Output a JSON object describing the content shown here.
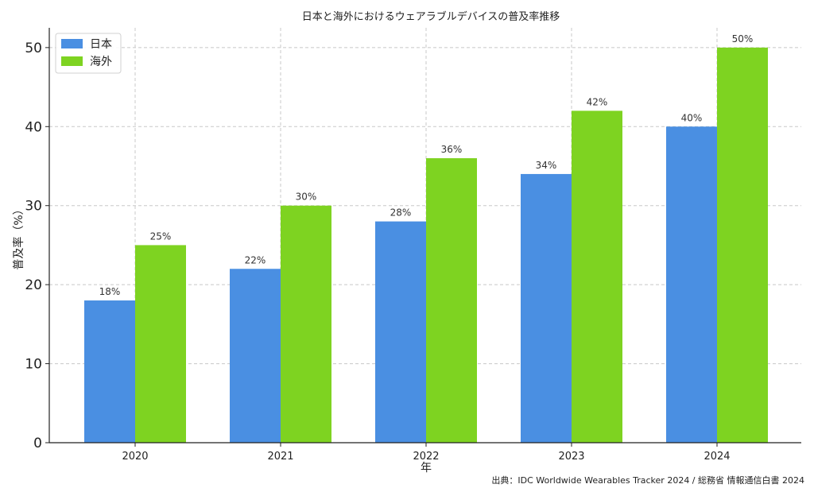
{
  "chart_data": {
    "type": "bar",
    "title": "日本と海外におけるウェアラブルデバイスの普及率推移",
    "xlabel": "年",
    "ylabel": "普及率（%）",
    "categories": [
      "2020",
      "2021",
      "2022",
      "2023",
      "2024"
    ],
    "series": [
      {
        "name": "日本",
        "values": [
          18,
          22,
          28,
          34,
          40
        ],
        "labels": [
          "18%",
          "22%",
          "28%",
          "34%",
          "40%"
        ],
        "color": "#4a8fe2"
      },
      {
        "name": "海外",
        "values": [
          25,
          30,
          36,
          42,
          50
        ],
        "labels": [
          "25%",
          "30%",
          "36%",
          "42%",
          "50%"
        ],
        "color": "#7ed321"
      }
    ],
    "ylim": [
      0,
      52.5
    ],
    "yticks": [
      0,
      10,
      20,
      30,
      40,
      50
    ],
    "grid": true,
    "legend": "top-left"
  },
  "source": "出典：IDC Worldwide Wearables Tracker 2024 / 総務省 情報通信白書 2024"
}
